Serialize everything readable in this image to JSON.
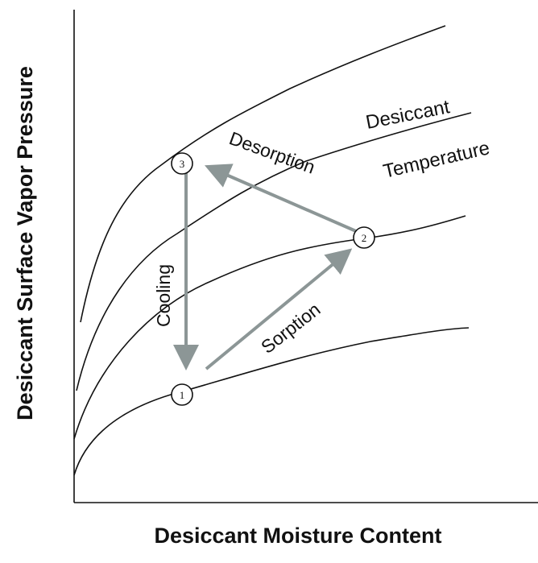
{
  "axes": {
    "x_label": "Desiccant Moisture Content",
    "y_label": "Desiccant Surface Vapor Pressure"
  },
  "labels": {
    "desorption": "Desorption",
    "sorption": "Sorption",
    "cooling": "Cooling",
    "desiccant": "Desiccant",
    "temperature": "Temperature"
  },
  "points": {
    "p1": "1",
    "p2": "2",
    "p3": "3"
  },
  "colors": {
    "arrow": "#8c9696",
    "curve": "#111111"
  }
}
